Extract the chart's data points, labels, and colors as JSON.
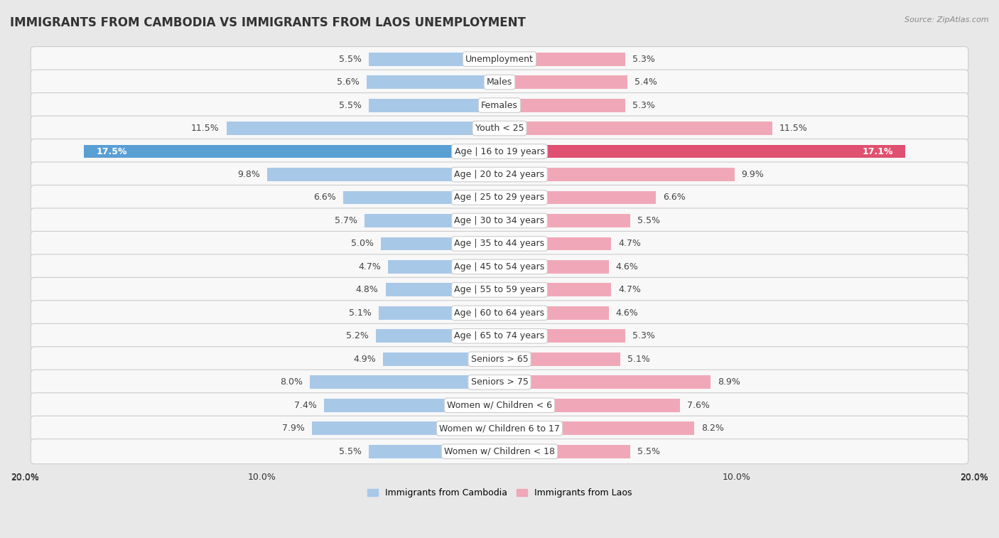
{
  "title": "IMMIGRANTS FROM CAMBODIA VS IMMIGRANTS FROM LAOS UNEMPLOYMENT",
  "source": "Source: ZipAtlas.com",
  "categories": [
    "Unemployment",
    "Males",
    "Females",
    "Youth < 25",
    "Age | 16 to 19 years",
    "Age | 20 to 24 years",
    "Age | 25 to 29 years",
    "Age | 30 to 34 years",
    "Age | 35 to 44 years",
    "Age | 45 to 54 years",
    "Age | 55 to 59 years",
    "Age | 60 to 64 years",
    "Age | 65 to 74 years",
    "Seniors > 65",
    "Seniors > 75",
    "Women w/ Children < 6",
    "Women w/ Children 6 to 17",
    "Women w/ Children < 18"
  ],
  "cambodia_values": [
    5.5,
    5.6,
    5.5,
    11.5,
    17.5,
    9.8,
    6.6,
    5.7,
    5.0,
    4.7,
    4.8,
    5.1,
    5.2,
    4.9,
    8.0,
    7.4,
    7.9,
    5.5
  ],
  "laos_values": [
    5.3,
    5.4,
    5.3,
    11.5,
    17.1,
    9.9,
    6.6,
    5.5,
    4.7,
    4.6,
    4.7,
    4.6,
    5.3,
    5.1,
    8.9,
    7.6,
    8.2,
    5.5
  ],
  "cambodia_color": "#a8c8e8",
  "laos_color": "#f0a8b8",
  "highlight_cambodia_color": "#5a9fd4",
  "highlight_laos_color": "#e05070",
  "row_color_even": "#f5f5f5",
  "row_color_odd": "#e8e8e8",
  "row_bg_color": "#dcdcdc",
  "xlim": 20.0,
  "background_color": "#e8e8e8",
  "label_cambodia": "Immigrants from Cambodia",
  "label_laos": "Immigrants from Laos",
  "title_fontsize": 12,
  "value_fontsize": 9,
  "category_fontsize": 9
}
